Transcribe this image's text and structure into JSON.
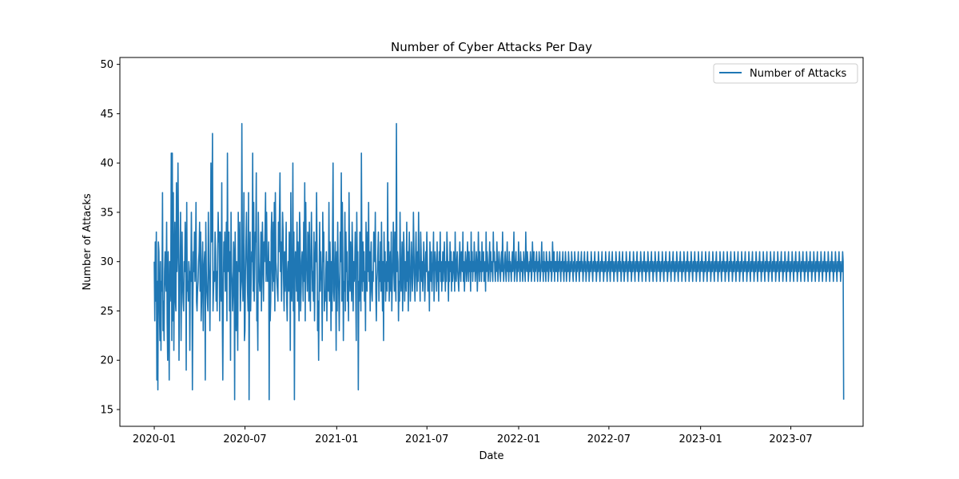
{
  "chart_data": {
    "type": "line",
    "title": "Number of Cyber Attacks Per Day",
    "xlabel": "Date",
    "ylabel": "Number of Attacks",
    "x_start": "2020-01-01",
    "x_end": "2023-10-15",
    "xlim": [
      "2019-10-24",
      "2023-11-23"
    ],
    "ylim": [
      13.3,
      50.7
    ],
    "x_ticks": [
      "2020-01",
      "2020-07",
      "2021-01",
      "2021-07",
      "2022-01",
      "2022-07",
      "2023-01",
      "2023-07"
    ],
    "y_ticks": [
      15,
      20,
      25,
      30,
      35,
      40,
      45,
      50
    ],
    "legend_position": "top-right",
    "grid": false,
    "series": [
      {
        "name": "Number of Attacks",
        "color": "#1f77b4",
        "values": [
          30,
          24,
          32,
          26,
          33,
          18,
          28,
          17,
          32,
          31,
          25,
          22,
          30,
          21,
          28,
          27,
          37,
          23,
          26,
          22,
          29,
          31,
          28,
          27,
          34,
          24,
          20,
          31,
          25,
          18,
          30,
          26,
          28,
          41,
          22,
          41,
          24,
          37,
          21,
          29,
          34,
          26,
          25,
          38,
          29,
          31,
          40,
          33,
          20,
          28,
          30,
          35,
          22,
          27,
          33,
          28,
          26,
          25,
          30,
          29,
          34,
          31,
          19,
          36,
          27,
          28,
          26,
          30,
          29,
          21,
          29,
          28,
          35,
          30,
          17,
          26,
          31,
          29,
          33,
          28,
          30,
          36,
          26,
          25,
          27,
          28,
          30,
          31,
          34,
          27,
          33,
          24,
          26,
          30,
          32,
          23,
          29,
          30,
          31,
          18,
          34,
          29,
          27,
          26,
          25,
          35,
          30,
          28,
          23,
          29,
          40,
          32,
          34,
          43,
          25,
          27,
          29,
          28,
          33,
          31,
          26,
          29,
          25,
          30,
          35,
          32,
          33,
          24,
          33,
          28,
          26,
          38,
          25,
          18,
          27,
          32,
          29,
          33,
          27,
          28,
          34,
          24,
          41,
          29,
          30,
          33,
          25,
          31,
          20,
          35,
          29,
          28,
          25,
          27,
          32,
          30,
          16,
          33,
          29,
          23,
          30,
          27,
          21,
          35,
          30,
          29,
          34,
          25,
          27,
          28,
          44,
          30,
          26,
          28,
          37,
          22,
          23,
          29,
          32,
          35,
          30,
          27,
          25,
          37,
          16,
          29,
          33,
          25,
          28,
          31,
          30,
          41,
          27,
          36,
          26,
          29,
          33,
          32,
          39,
          24,
          26,
          21,
          35,
          30,
          28,
          27,
          29,
          33,
          25,
          31,
          34,
          29,
          26,
          32,
          30,
          33,
          37,
          28,
          35,
          30,
          28,
          29,
          32,
          16,
          30,
          24,
          26,
          33,
          35,
          29,
          27,
          34,
          28,
          36,
          25,
          37,
          30,
          29,
          28,
          27,
          26,
          34,
          31,
          35,
          39,
          29,
          32,
          26,
          30,
          35,
          33,
          28,
          25,
          31,
          27,
          29,
          34,
          26,
          24,
          29,
          30,
          27,
          33,
          32,
          21,
          37,
          28,
          26,
          30,
          40,
          25,
          33,
          16,
          29,
          31,
          30,
          27,
          34,
          26,
          32,
          28,
          24,
          35,
          33,
          25,
          27,
          30,
          31,
          29,
          26,
          34,
          28,
          38,
          24,
          36,
          30,
          29,
          27,
          33,
          32,
          26,
          34,
          28,
          25,
          30,
          35,
          31,
          27,
          29,
          26,
          33,
          24,
          28,
          32,
          30,
          37,
          31,
          23,
          26,
          20,
          28,
          34,
          27,
          31,
          29,
          28,
          22,
          35,
          30,
          33,
          25,
          27,
          26,
          29,
          31,
          24,
          30,
          28,
          27,
          36,
          26,
          32,
          29,
          23,
          30,
          25,
          33,
          40,
          27,
          26,
          29,
          32,
          28,
          21,
          31,
          25,
          34,
          29,
          27,
          23,
          28,
          33,
          30,
          39,
          26,
          36,
          30,
          22,
          28,
          27,
          35,
          25,
          33,
          29,
          31,
          26,
          28,
          24,
          37,
          30,
          27,
          32,
          29,
          26,
          34,
          31,
          25,
          30,
          28,
          29,
          33,
          27,
          22,
          35,
          30,
          31,
          17,
          28,
          26,
          33,
          29,
          25,
          41,
          30,
          27,
          32,
          28,
          31,
          26,
          29,
          23,
          34,
          30,
          27,
          33,
          29,
          36,
          28,
          31,
          25,
          30,
          32,
          27,
          26,
          29,
          28,
          33,
          31,
          30,
          35,
          27,
          24,
          28,
          29,
          31,
          33,
          26,
          30,
          28,
          32,
          27,
          34,
          29,
          25,
          30,
          22,
          33,
          28,
          31,
          26,
          29,
          30,
          27,
          38,
          28,
          32,
          26,
          29,
          31,
          27,
          33,
          25,
          28,
          30,
          34,
          29,
          27,
          33,
          28,
          26,
          44,
          29,
          31,
          30,
          24,
          28,
          26,
          35,
          30,
          27,
          29,
          32,
          25,
          28,
          33,
          31,
          26,
          30,
          29,
          27,
          34,
          28,
          31,
          25,
          30,
          33,
          29,
          26,
          28,
          32,
          30,
          27,
          29,
          35,
          31,
          28,
          26,
          30,
          33,
          29,
          27,
          31,
          28,
          35,
          30,
          29,
          26,
          33,
          31,
          28,
          30,
          27,
          29,
          32,
          30,
          26,
          28,
          31,
          29,
          33,
          30,
          27,
          28,
          29,
          25,
          32,
          30,
          28,
          31,
          27,
          29,
          30,
          33,
          26,
          28,
          31,
          30,
          29,
          27,
          32,
          28,
          30,
          26,
          31,
          29,
          33,
          28,
          30,
          27,
          29,
          31,
          28,
          30,
          32,
          29,
          27,
          30,
          28,
          33,
          31,
          29,
          26,
          30,
          28,
          32,
          29,
          31,
          27,
          30,
          28,
          29,
          31,
          30,
          27,
          33,
          29,
          28,
          30,
          31,
          29,
          28,
          27,
          30,
          32,
          29,
          28,
          31,
          30,
          29,
          33,
          28,
          30,
          27,
          29,
          31,
          30,
          28,
          29,
          32,
          30,
          28,
          31,
          29,
          30,
          27,
          33,
          29,
          31,
          28,
          30,
          29,
          32,
          30,
          28,
          29,
          31,
          30,
          27,
          29,
          33,
          30,
          28,
          31,
          29,
          30,
          28,
          32,
          29,
          30,
          31,
          28,
          29,
          30,
          27,
          33,
          29,
          31,
          30,
          28,
          29,
          30,
          32,
          28,
          31,
          29,
          30,
          29,
          28,
          33,
          30,
          31,
          29,
          28,
          30,
          29,
          32,
          30,
          28,
          29,
          31,
          30,
          29,
          28,
          30,
          31,
          29,
          33,
          30,
          28,
          29,
          30,
          31,
          29,
          28,
          30,
          32,
          29,
          30,
          28,
          31,
          29,
          30,
          29,
          28,
          30,
          31,
          29,
          30,
          33,
          28,
          29,
          30,
          31,
          29,
          28,
          30,
          29,
          32,
          30,
          29,
          28,
          31,
          30,
          29,
          30,
          28,
          29,
          31,
          30,
          29,
          28,
          33,
          30,
          29,
          31,
          30,
          28,
          29,
          30,
          29,
          31,
          30,
          28,
          29,
          32,
          30,
          29,
          31,
          28,
          30,
          29,
          30,
          31,
          29,
          28,
          30,
          29,
          31,
          30,
          28,
          29,
          30,
          32,
          29,
          30,
          28,
          31,
          29,
          30,
          29,
          28,
          31,
          30,
          29,
          30,
          28,
          29,
          31,
          30,
          29,
          30,
          28,
          29,
          32,
          30,
          29,
          31,
          28,
          30,
          29,
          30,
          29,
          31,
          28,
          30,
          29,
          30,
          31,
          29,
          28,
          30,
          29,
          30,
          31,
          29,
          28,
          30,
          29,
          31,
          30,
          28,
          29,
          30,
          29,
          31,
          30,
          28,
          29,
          30,
          29,
          31,
          30,
          29,
          28,
          30,
          29,
          31,
          30,
          29,
          28,
          30,
          29,
          30,
          31,
          29,
          28,
          30,
          29,
          30,
          31,
          29,
          30,
          28,
          29,
          30,
          31,
          29,
          30,
          28,
          29,
          30,
          31,
          29,
          30,
          28,
          29,
          30,
          29,
          31,
          30,
          29,
          28,
          30,
          29,
          30,
          31,
          29,
          30,
          28,
          29,
          30,
          29,
          31,
          30,
          29,
          28,
          30,
          29,
          30,
          31,
          29,
          30,
          28,
          29,
          30,
          29,
          31,
          30,
          29,
          28,
          30,
          29,
          30,
          31,
          29,
          28,
          30,
          29,
          30,
          31,
          29,
          30,
          28,
          29,
          30,
          29,
          31,
          30,
          29,
          28,
          30,
          29,
          30,
          31,
          29,
          30,
          28,
          29,
          30,
          31,
          29,
          30,
          28,
          29,
          30,
          29,
          31,
          30,
          29,
          28,
          30,
          29,
          30,
          31,
          29,
          30,
          28,
          29,
          30,
          29,
          31,
          30,
          29,
          28,
          30,
          29,
          30,
          31,
          29,
          30,
          28,
          29,
          30,
          29,
          31,
          30,
          29,
          28,
          30,
          29,
          30,
          31,
          29,
          30,
          28,
          29,
          30,
          29,
          31,
          30,
          29,
          28,
          30,
          29,
          30,
          31,
          29,
          30,
          28,
          29,
          30,
          29,
          31,
          30,
          29,
          28,
          30,
          29,
          30,
          31,
          29,
          30,
          28,
          29,
          30,
          29,
          31,
          30,
          29,
          28,
          30,
          29,
          30,
          31,
          29,
          30,
          28,
          29,
          30,
          29,
          31,
          30,
          29,
          28,
          30,
          29,
          30,
          31,
          29,
          30,
          28,
          29,
          30,
          29,
          31,
          30,
          29,
          28,
          30,
          29,
          30,
          31,
          29,
          30,
          28,
          29,
          30,
          29,
          31,
          30,
          29,
          28,
          30,
          29,
          30,
          31,
          29,
          30,
          28,
          29,
          30,
          29,
          31,
          30,
          29,
          28,
          30,
          29,
          30,
          31,
          29,
          30,
          28,
          29,
          30,
          29,
          31,
          30,
          29,
          28,
          30,
          29,
          30,
          31,
          29,
          30,
          28,
          29,
          30,
          29,
          31,
          30,
          29,
          28,
          30,
          29,
          30,
          31,
          29,
          30,
          28,
          29,
          30,
          29,
          31,
          30,
          29,
          28,
          30,
          29,
          30,
          31,
          29,
          30,
          28,
          29,
          30,
          29,
          31,
          30,
          29,
          28,
          30,
          29,
          30,
          31,
          29,
          30,
          28,
          29,
          30,
          29,
          31,
          30,
          29,
          28,
          30,
          29,
          30,
          31,
          29,
          30,
          28,
          29,
          30,
          29,
          31,
          30,
          29,
          28,
          30,
          29,
          30,
          31,
          29,
          30,
          28,
          29,
          30,
          29,
          31,
          30,
          29,
          28,
          30,
          29,
          30,
          31,
          29,
          30,
          28,
          29,
          30,
          29,
          31,
          30,
          29,
          28,
          30,
          29,
          30,
          31,
          29,
          30,
          28,
          29,
          30,
          29,
          31,
          30,
          29,
          28,
          30,
          29,
          30,
          31,
          29,
          30,
          28,
          29,
          30,
          29,
          31,
          30,
          29,
          28,
          30,
          29,
          30,
          31,
          29,
          30,
          28,
          29,
          30,
          29,
          31,
          30,
          29,
          28,
          30,
          29,
          30,
          31,
          29,
          30,
          28,
          29,
          30,
          29,
          31,
          30,
          29,
          28,
          30,
          29,
          30,
          31,
          29,
          30,
          28,
          29,
          30,
          29,
          31,
          30,
          29,
          28,
          30,
          29,
          30,
          31,
          29,
          30,
          28,
          29,
          30,
          29,
          31,
          30,
          29,
          28,
          30,
          29,
          30,
          31,
          29,
          30,
          28,
          29,
          30,
          29,
          31,
          30,
          29,
          28,
          30,
          29,
          30,
          31,
          29,
          30,
          28,
          29,
          30,
          29,
          31,
          30,
          29,
          28,
          30,
          29,
          30,
          31,
          29,
          30,
          28,
          29,
          30,
          29,
          31,
          30,
          29,
          28,
          30,
          29,
          30,
          31,
          29,
          30,
          28,
          29,
          30,
          29,
          31,
          30,
          29,
          28,
          30,
          29,
          30,
          31,
          29,
          30,
          28,
          29,
          30,
          29,
          31,
          30,
          29,
          28,
          30,
          29,
          30,
          31,
          29,
          30,
          28,
          29,
          30,
          29,
          31,
          30,
          29,
          28,
          30,
          29,
          30,
          31,
          29,
          30,
          28,
          29,
          30,
          29,
          31,
          30,
          16
        ]
      }
    ]
  }
}
